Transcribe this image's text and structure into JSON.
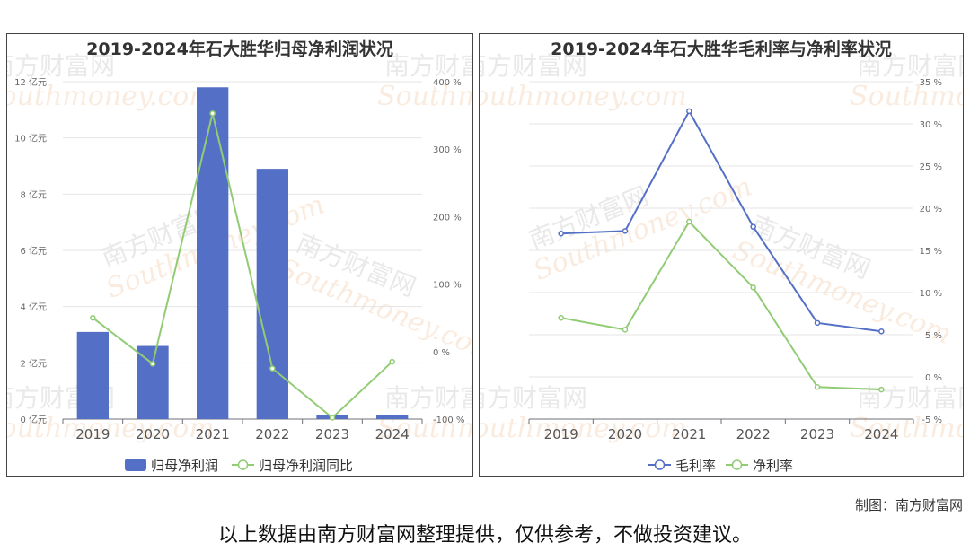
{
  "colors": {
    "bar": "#5470c6",
    "line_green": "#91cc75",
    "line_blue": "#5470c6"
  },
  "chart_data": [
    {
      "type": "bar",
      "title": "2019-2024年石大胜华归母净利润状况",
      "categories": [
        "2019",
        "2020",
        "2021",
        "2022",
        "2023",
        "2024"
      ],
      "series": [
        {
          "name": "归母净利润",
          "type": "bar",
          "axis": "left",
          "values": [
            3.1,
            2.6,
            11.8,
            8.9,
            0.15,
            0.15
          ]
        },
        {
          "name": "归母净利润同比",
          "type": "line",
          "axis": "right",
          "values": [
            50,
            -18,
            353,
            -25,
            -98,
            -15
          ]
        }
      ],
      "y_left": {
        "ticks": [
          "0 亿元",
          "2 亿元",
          "4 亿元",
          "6 亿元",
          "8 亿元",
          "10 亿元",
          "12 亿元"
        ],
        "ylim": [
          0,
          12
        ]
      },
      "y_right": {
        "ticks": [
          "-100 %",
          "0 %",
          "100 %",
          "200 %",
          "300 %",
          "400 %"
        ],
        "ylim": [
          -100,
          400
        ]
      },
      "legend_position": "bottom",
      "grid": true
    },
    {
      "type": "line",
      "title": "2019-2024年石大胜华毛利率与净利率状况",
      "categories": [
        "2019",
        "2020",
        "2021",
        "2022",
        "2023",
        "2024"
      ],
      "series": [
        {
          "name": "毛利率",
          "values": [
            17.0,
            17.3,
            31.5,
            17.8,
            6.4,
            5.4
          ]
        },
        {
          "name": "净利率",
          "values": [
            7.0,
            5.6,
            18.4,
            10.6,
            -1.2,
            -1.5
          ]
        }
      ],
      "y_right": {
        "ticks": [
          "-5 %",
          "0 %",
          "5 %",
          "10 %",
          "15 %",
          "20 %",
          "25 %",
          "30 %",
          "35 %"
        ],
        "ylim": [
          -5,
          35
        ]
      },
      "legend_position": "bottom",
      "grid": true
    }
  ],
  "footer": {
    "source": "制图：南方财富网",
    "disclaimer": "以上数据由南方财富网整理提供，仅供参考，不做投资建议。"
  },
  "watermark": {
    "cn": "南方财富网",
    "en": "Southmoney.com"
  }
}
